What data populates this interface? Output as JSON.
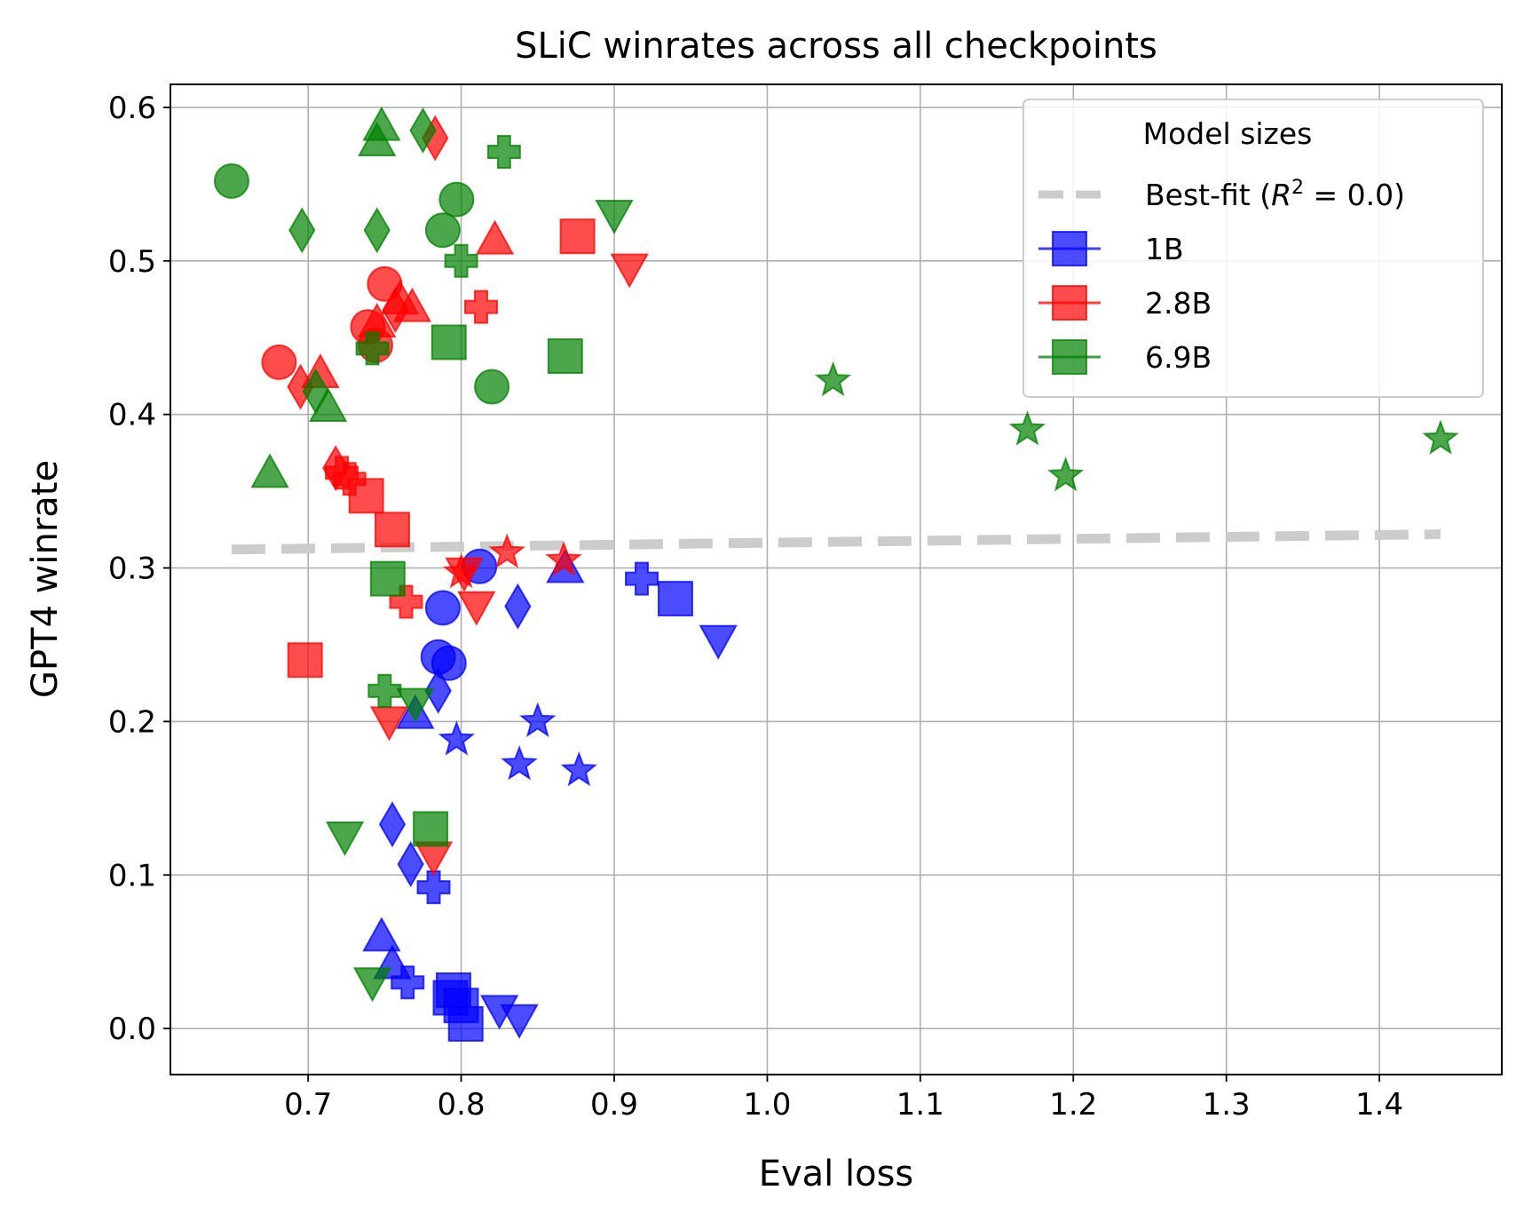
{
  "chart_data": {
    "type": "scatter",
    "title": "SLiC winrates across all checkpoints",
    "xlabel": "Eval loss",
    "ylabel": "GPT4 winrate",
    "xlim": [
      0.61,
      1.48
    ],
    "ylim": [
      -0.03,
      0.615
    ],
    "xticks": [
      0.7,
      0.8,
      0.9,
      1.0,
      1.1,
      1.2,
      1.3,
      1.4
    ],
    "xtick_labels": [
      "0.7",
      "0.8",
      "0.9",
      "1.0",
      "1.1",
      "1.2",
      "1.3",
      "1.4"
    ],
    "yticks": [
      0.0,
      0.1,
      0.2,
      0.3,
      0.4,
      0.5,
      0.6
    ],
    "ytick_labels": [
      "0.0",
      "0.1",
      "0.2",
      "0.3",
      "0.4",
      "0.5",
      "0.6"
    ],
    "grid": true,
    "legend": {
      "title": "Model sizes",
      "placement": "top-right",
      "entries": [
        {
          "label": "Best-fit",
          "r2_text": "R",
          "r2_sup": "2",
          "r2_value": " = 0.0)",
          "kind": "line"
        },
        {
          "label": "1B",
          "series": 0
        },
        {
          "label": "2.8B",
          "series": 1
        },
        {
          "label": "6.9B",
          "series": 2
        }
      ]
    },
    "best_fit": {
      "label": "Best-fit (R^2 = 0.0)",
      "x": [
        0.65,
        1.44
      ],
      "y": [
        0.312,
        0.322
      ],
      "color": "#cccccc"
    },
    "series": [
      {
        "name": "1B",
        "color": "#0000ff",
        "points": [
          {
            "x": 0.782,
            "y": 0.092,
            "marker": "plus"
          },
          {
            "x": 0.765,
            "y": 0.03,
            "marker": "plus"
          },
          {
            "x": 0.918,
            "y": 0.293,
            "marker": "plus"
          },
          {
            "x": 0.793,
            "y": 0.02,
            "marker": "square"
          },
          {
            "x": 0.795,
            "y": 0.025,
            "marker": "square"
          },
          {
            "x": 0.8,
            "y": 0.015,
            "marker": "square"
          },
          {
            "x": 0.803,
            "y": 0.003,
            "marker": "square"
          },
          {
            "x": 0.94,
            "y": 0.28,
            "marker": "square"
          },
          {
            "x": 0.788,
            "y": 0.274,
            "marker": "circle"
          },
          {
            "x": 0.785,
            "y": 0.242,
            "marker": "circle"
          },
          {
            "x": 0.792,
            "y": 0.238,
            "marker": "circle"
          },
          {
            "x": 0.812,
            "y": 0.301,
            "marker": "circle"
          },
          {
            "x": 0.748,
            "y": 0.06,
            "marker": "triangle-up"
          },
          {
            "x": 0.755,
            "y": 0.042,
            "marker": "triangle-up"
          },
          {
            "x": 0.77,
            "y": 0.205,
            "marker": "triangle-up"
          },
          {
            "x": 0.868,
            "y": 0.3,
            "marker": "triangle-up"
          },
          {
            "x": 0.825,
            "y": 0.012,
            "marker": "triangle-down"
          },
          {
            "x": 0.838,
            "y": 0.006,
            "marker": "triangle-down"
          },
          {
            "x": 0.968,
            "y": 0.253,
            "marker": "triangle-down"
          },
          {
            "x": 0.755,
            "y": 0.133,
            "marker": "diamond"
          },
          {
            "x": 0.767,
            "y": 0.107,
            "marker": "diamond"
          },
          {
            "x": 0.785,
            "y": 0.22,
            "marker": "diamond"
          },
          {
            "x": 0.837,
            "y": 0.275,
            "marker": "diamond"
          },
          {
            "x": 0.797,
            "y": 0.188,
            "marker": "star"
          },
          {
            "x": 0.838,
            "y": 0.172,
            "marker": "star"
          },
          {
            "x": 0.85,
            "y": 0.2,
            "marker": "star"
          },
          {
            "x": 0.877,
            "y": 0.168,
            "marker": "star"
          }
        ]
      },
      {
        "name": "2.8B",
        "color": "#ff0000",
        "points": [
          {
            "x": 0.722,
            "y": 0.362,
            "marker": "plus"
          },
          {
            "x": 0.727,
            "y": 0.358,
            "marker": "plus"
          },
          {
            "x": 0.764,
            "y": 0.278,
            "marker": "plus"
          },
          {
            "x": 0.813,
            "y": 0.47,
            "marker": "plus"
          },
          {
            "x": 0.698,
            "y": 0.24,
            "marker": "square"
          },
          {
            "x": 0.738,
            "y": 0.347,
            "marker": "square"
          },
          {
            "x": 0.755,
            "y": 0.325,
            "marker": "square"
          },
          {
            "x": 0.876,
            "y": 0.516,
            "marker": "square"
          },
          {
            "x": 0.681,
            "y": 0.434,
            "marker": "circle"
          },
          {
            "x": 0.739,
            "y": 0.457,
            "marker": "circle"
          },
          {
            "x": 0.744,
            "y": 0.445,
            "marker": "circle"
          },
          {
            "x": 0.75,
            "y": 0.485,
            "marker": "circle"
          },
          {
            "x": 0.745,
            "y": 0.46,
            "marker": "triangle-up"
          },
          {
            "x": 0.76,
            "y": 0.475,
            "marker": "triangle-up"
          },
          {
            "x": 0.768,
            "y": 0.47,
            "marker": "triangle-up"
          },
          {
            "x": 0.708,
            "y": 0.427,
            "marker": "triangle-up"
          },
          {
            "x": 0.822,
            "y": 0.514,
            "marker": "triangle-up"
          },
          {
            "x": 0.753,
            "y": 0.2,
            "marker": "triangle-down"
          },
          {
            "x": 0.782,
            "y": 0.112,
            "marker": "triangle-down"
          },
          {
            "x": 0.81,
            "y": 0.275,
            "marker": "triangle-down"
          },
          {
            "x": 0.802,
            "y": 0.297,
            "marker": "triangle-down"
          },
          {
            "x": 0.91,
            "y": 0.495,
            "marker": "triangle-down"
          },
          {
            "x": 0.695,
            "y": 0.418,
            "marker": "diamond"
          },
          {
            "x": 0.718,
            "y": 0.365,
            "marker": "diamond"
          },
          {
            "x": 0.757,
            "y": 0.468,
            "marker": "diamond"
          },
          {
            "x": 0.783,
            "y": 0.58,
            "marker": "diamond"
          },
          {
            "x": 0.8,
            "y": 0.297,
            "marker": "star"
          },
          {
            "x": 0.83,
            "y": 0.31,
            "marker": "star"
          },
          {
            "x": 0.867,
            "y": 0.305,
            "marker": "star"
          }
        ]
      },
      {
        "name": "6.9B",
        "color": "#008000",
        "points": [
          {
            "x": 0.742,
            "y": 0.443,
            "marker": "plus"
          },
          {
            "x": 0.75,
            "y": 0.22,
            "marker": "plus"
          },
          {
            "x": 0.8,
            "y": 0.5,
            "marker": "plus"
          },
          {
            "x": 0.828,
            "y": 0.571,
            "marker": "plus"
          },
          {
            "x": 0.752,
            "y": 0.293,
            "marker": "square"
          },
          {
            "x": 0.78,
            "y": 0.13,
            "marker": "square"
          },
          {
            "x": 0.792,
            "y": 0.447,
            "marker": "square"
          },
          {
            "x": 0.868,
            "y": 0.438,
            "marker": "square"
          },
          {
            "x": 0.65,
            "y": 0.552,
            "marker": "circle"
          },
          {
            "x": 0.788,
            "y": 0.52,
            "marker": "circle"
          },
          {
            "x": 0.797,
            "y": 0.54,
            "marker": "circle"
          },
          {
            "x": 0.82,
            "y": 0.418,
            "marker": "circle"
          },
          {
            "x": 0.675,
            "y": 0.362,
            "marker": "triangle-up"
          },
          {
            "x": 0.713,
            "y": 0.405,
            "marker": "triangle-up"
          },
          {
            "x": 0.745,
            "y": 0.578,
            "marker": "triangle-up"
          },
          {
            "x": 0.748,
            "y": 0.588,
            "marker": "triangle-up"
          },
          {
            "x": 0.724,
            "y": 0.125,
            "marker": "triangle-down"
          },
          {
            "x": 0.742,
            "y": 0.03,
            "marker": "triangle-down"
          },
          {
            "x": 0.77,
            "y": 0.212,
            "marker": "triangle-down"
          },
          {
            "x": 0.9,
            "y": 0.53,
            "marker": "triangle-down"
          },
          {
            "x": 0.696,
            "y": 0.52,
            "marker": "diamond"
          },
          {
            "x": 0.705,
            "y": 0.415,
            "marker": "diamond"
          },
          {
            "x": 0.745,
            "y": 0.52,
            "marker": "diamond"
          },
          {
            "x": 0.775,
            "y": 0.585,
            "marker": "diamond"
          },
          {
            "x": 1.043,
            "y": 0.422,
            "marker": "star"
          },
          {
            "x": 1.17,
            "y": 0.39,
            "marker": "star"
          },
          {
            "x": 1.195,
            "y": 0.36,
            "marker": "star"
          },
          {
            "x": 1.44,
            "y": 0.384,
            "marker": "star"
          }
        ]
      }
    ]
  }
}
